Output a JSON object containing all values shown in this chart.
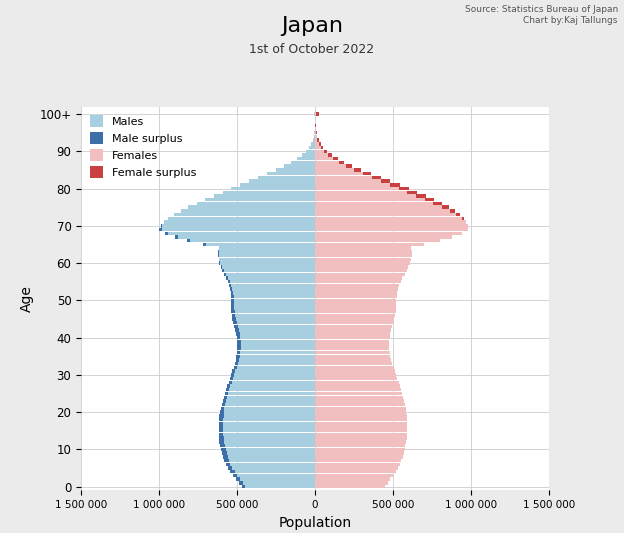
{
  "title": "Japan",
  "subtitle": "1st of October 2022",
  "source_text": "Source: Statistics Bureau of Japan\nChart by:Kaj Tallungs",
  "xlabel": "Population",
  "ylabel": "Age",
  "xlim": 1500000,
  "background_color": "#ebebeb",
  "plot_background": "#ffffff",
  "male_color": "#a8cfe0",
  "male_surplus_color": "#3c6fa8",
  "female_color": "#f2bfc0",
  "female_surplus_color": "#c94040",
  "ages": [
    0,
    1,
    2,
    3,
    4,
    5,
    6,
    7,
    8,
    9,
    10,
    11,
    12,
    13,
    14,
    15,
    16,
    17,
    18,
    19,
    20,
    21,
    22,
    23,
    24,
    25,
    26,
    27,
    28,
    29,
    30,
    31,
    32,
    33,
    34,
    35,
    36,
    37,
    38,
    39,
    40,
    41,
    42,
    43,
    44,
    45,
    46,
    47,
    48,
    49,
    50,
    51,
    52,
    53,
    54,
    55,
    56,
    57,
    58,
    59,
    60,
    61,
    62,
    63,
    64,
    65,
    66,
    67,
    68,
    69,
    70,
    71,
    72,
    73,
    74,
    75,
    76,
    77,
    78,
    79,
    80,
    81,
    82,
    83,
    84,
    85,
    86,
    87,
    88,
    89,
    90,
    91,
    92,
    93,
    94,
    95,
    96,
    97,
    98,
    99,
    100
  ],
  "males": [
    471000,
    490000,
    509000,
    527000,
    543000,
    559000,
    572000,
    583000,
    591000,
    598000,
    604000,
    609000,
    613000,
    616000,
    618000,
    619000,
    619000,
    618000,
    616000,
    613000,
    609000,
    605000,
    599000,
    593000,
    586000,
    579000,
    571000,
    563000,
    555000,
    547000,
    538000,
    530000,
    522000,
    515000,
    509000,
    504000,
    500000,
    498000,
    498000,
    500000,
    503000,
    508000,
    513000,
    519000,
    525000,
    530000,
    534000,
    537000,
    538000,
    538000,
    537000,
    537000,
    539000,
    543000,
    550000,
    559000,
    570000,
    582000,
    594000,
    605000,
    614000,
    619000,
    622000,
    620000,
    617000,
    720000,
    820000,
    900000,
    960000,
    1000000,
    990000,
    970000,
    942000,
    906000,
    862000,
    812000,
    758000,
    703000,
    648000,
    592000,
    537000,
    480000,
    422000,
    364000,
    307000,
    252000,
    200000,
    154000,
    115000,
    83000,
    57000,
    38000,
    24000,
    15000,
    9000,
    5000,
    3000,
    2000,
    1000,
    1000,
    8000
  ],
  "females": [
    447000,
    465000,
    483000,
    500000,
    516000,
    531000,
    543000,
    553000,
    561000,
    568000,
    574000,
    579000,
    583000,
    586000,
    588000,
    590000,
    590000,
    590000,
    589000,
    587000,
    584000,
    581000,
    576000,
    571000,
    565000,
    558000,
    551000,
    543000,
    535000,
    527000,
    519000,
    511000,
    503000,
    495000,
    489000,
    483000,
    479000,
    476000,
    475000,
    476000,
    479000,
    483000,
    489000,
    495000,
    501000,
    507000,
    512000,
    516000,
    519000,
    520000,
    521000,
    522000,
    525000,
    530000,
    538000,
    548000,
    560000,
    573000,
    586000,
    598000,
    608000,
    614000,
    619000,
    619000,
    617000,
    700000,
    800000,
    880000,
    940000,
    980000,
    980000,
    970000,
    953000,
    928000,
    895000,
    856000,
    812000,
    763000,
    711000,
    656000,
    600000,
    542000,
    482000,
    421000,
    358000,
    297000,
    239000,
    188000,
    144000,
    107000,
    76000,
    53000,
    36000,
    23000,
    14000,
    9000,
    5000,
    3000,
    2000,
    1000,
    25000
  ]
}
